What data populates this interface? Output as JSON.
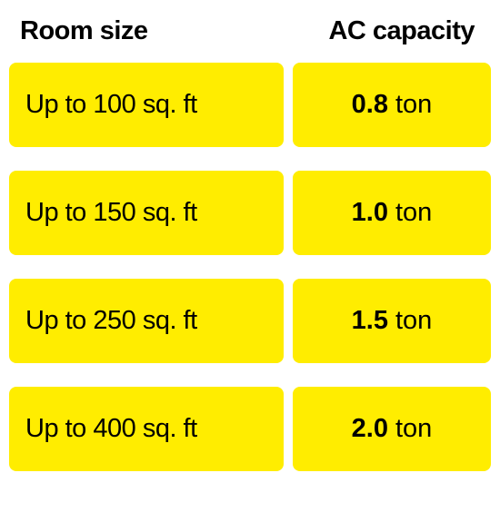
{
  "type": "table",
  "background_color": "#ffffff",
  "cell_color": "#ffed00",
  "text_color": "#000000",
  "header_fontsize": 29,
  "cell_fontsize": 29,
  "border_radius": 8,
  "row_gap": 26,
  "col_gap": 10,
  "columns": {
    "left": "Room size",
    "right": "AC capacity"
  },
  "rows": [
    {
      "room_size": "Up to 100 sq. ft",
      "capacity_value": "0.8",
      "capacity_unit": "ton"
    },
    {
      "room_size": "Up to 150 sq. ft",
      "capacity_value": "1.0",
      "capacity_unit": "ton"
    },
    {
      "room_size": "Up to 250 sq. ft",
      "capacity_value": "1.5",
      "capacity_unit": "ton"
    },
    {
      "room_size": "Up to 400 sq. ft",
      "capacity_value": "2.0",
      "capacity_unit": "ton"
    }
  ]
}
